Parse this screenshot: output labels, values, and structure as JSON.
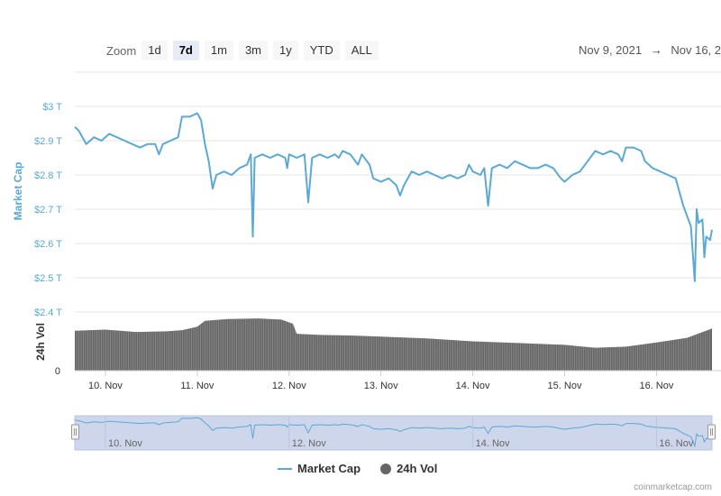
{
  "toolbar": {
    "zoom_label": "Zoom",
    "zoom_buttons": [
      "1d",
      "7d",
      "1m",
      "3m",
      "1y",
      "YTD",
      "ALL"
    ],
    "active_zoom": "7d",
    "range_from": "Nov 9, 2021",
    "range_arrow": "→",
    "range_to": "Nov 16, 2"
  },
  "colors": {
    "market_cap": "#5ba9d5",
    "volume": "#666666",
    "navigator_fill": "#cdd6ea",
    "grid": "#e6e6e6"
  },
  "chart_data": {
    "type": "line",
    "title": "",
    "x_type": "datetime",
    "x_categories": [
      "10. Nov",
      "11. Nov",
      "12. Nov",
      "13. Nov",
      "14. Nov",
      "15. Nov",
      "16. Nov"
    ],
    "x_range": [
      "2021-11-09T16:00",
      "2021-11-16T14:30"
    ],
    "market_cap": {
      "name": "Market Cap",
      "ylabel": "Market Cap",
      "y_ticks": [
        "$3 T",
        "$2.9 T",
        "$2.8 T",
        "$2.7 T",
        "$2.6 T",
        "$2.5 T",
        "$2.4 T"
      ],
      "ylim": [
        2.4,
        3.0
      ],
      "unit": "trillion USD",
      "points": [
        [
          "2021-11-09T16:00",
          2.94
        ],
        [
          "2021-11-09T17:00",
          2.93
        ],
        [
          "2021-11-09T19:00",
          2.89
        ],
        [
          "2021-11-09T21:00",
          2.91
        ],
        [
          "2021-11-09T23:00",
          2.9
        ],
        [
          "2021-11-10T01:00",
          2.92
        ],
        [
          "2021-11-10T03:00",
          2.91
        ],
        [
          "2021-11-10T05:00",
          2.9
        ],
        [
          "2021-11-10T07:00",
          2.89
        ],
        [
          "2021-11-10T09:00",
          2.88
        ],
        [
          "2021-11-10T11:00",
          2.89
        ],
        [
          "2021-11-10T13:00",
          2.89
        ],
        [
          "2021-11-10T14:00",
          2.86
        ],
        [
          "2021-11-10T15:00",
          2.89
        ],
        [
          "2021-11-10T17:00",
          2.9
        ],
        [
          "2021-11-10T19:00",
          2.91
        ],
        [
          "2021-11-10T20:00",
          2.97
        ],
        [
          "2021-11-10T22:00",
          2.97
        ],
        [
          "2021-11-11T00:00",
          2.98
        ],
        [
          "2021-11-11T01:00",
          2.96
        ],
        [
          "2021-11-11T02:00",
          2.89
        ],
        [
          "2021-11-11T03:00",
          2.84
        ],
        [
          "2021-11-11T04:00",
          2.76
        ],
        [
          "2021-11-11T05:00",
          2.8
        ],
        [
          "2021-11-11T07:00",
          2.81
        ],
        [
          "2021-11-11T09:00",
          2.8
        ],
        [
          "2021-11-11T11:00",
          2.82
        ],
        [
          "2021-11-11T13:00",
          2.83
        ],
        [
          "2021-11-11T14:00",
          2.86
        ],
        [
          "2021-11-11T14:30",
          2.62
        ],
        [
          "2021-11-11T15:00",
          2.85
        ],
        [
          "2021-11-11T17:00",
          2.86
        ],
        [
          "2021-11-11T19:00",
          2.85
        ],
        [
          "2021-11-11T21:00",
          2.86
        ],
        [
          "2021-11-11T23:00",
          2.85
        ],
        [
          "2021-11-11T23:30",
          2.82
        ],
        [
          "2021-11-12T00:00",
          2.86
        ],
        [
          "2021-11-12T02:00",
          2.85
        ],
        [
          "2021-11-12T04:00",
          2.86
        ],
        [
          "2021-11-12T05:00",
          2.72
        ],
        [
          "2021-11-12T06:00",
          2.85
        ],
        [
          "2021-11-12T08:00",
          2.86
        ],
        [
          "2021-11-12T10:00",
          2.85
        ],
        [
          "2021-11-12T12:00",
          2.86
        ],
        [
          "2021-11-12T13:00",
          2.85
        ],
        [
          "2021-11-12T14:00",
          2.87
        ],
        [
          "2021-11-12T16:00",
          2.86
        ],
        [
          "2021-11-12T18:00",
          2.83
        ],
        [
          "2021-11-12T19:00",
          2.86
        ],
        [
          "2021-11-12T21:00",
          2.83
        ],
        [
          "2021-11-12T22:00",
          2.79
        ],
        [
          "2021-11-13T00:00",
          2.78
        ],
        [
          "2021-11-13T02:00",
          2.79
        ],
        [
          "2021-11-13T04:00",
          2.77
        ],
        [
          "2021-11-13T05:00",
          2.74
        ],
        [
          "2021-11-13T06:00",
          2.77
        ],
        [
          "2021-11-13T08:00",
          2.81
        ],
        [
          "2021-11-13T10:00",
          2.8
        ],
        [
          "2021-11-13T12:00",
          2.81
        ],
        [
          "2021-11-13T14:00",
          2.8
        ],
        [
          "2021-11-13T16:00",
          2.79
        ],
        [
          "2021-11-13T18:00",
          2.8
        ],
        [
          "2021-11-13T20:00",
          2.79
        ],
        [
          "2021-11-13T22:00",
          2.8
        ],
        [
          "2021-11-13T23:00",
          2.83
        ],
        [
          "2021-11-14T00:00",
          2.81
        ],
        [
          "2021-11-14T02:00",
          2.8
        ],
        [
          "2021-11-14T03:00",
          2.82
        ],
        [
          "2021-11-14T04:00",
          2.71
        ],
        [
          "2021-11-14T05:00",
          2.82
        ],
        [
          "2021-11-14T07:00",
          2.83
        ],
        [
          "2021-11-14T09:00",
          2.82
        ],
        [
          "2021-11-14T11:00",
          2.84
        ],
        [
          "2021-11-14T13:00",
          2.83
        ],
        [
          "2021-11-14T15:00",
          2.82
        ],
        [
          "2021-11-14T17:00",
          2.82
        ],
        [
          "2021-11-14T19:00",
          2.83
        ],
        [
          "2021-11-14T21:00",
          2.82
        ],
        [
          "2021-11-14T23:00",
          2.79
        ],
        [
          "2021-11-15T00:00",
          2.78
        ],
        [
          "2021-11-15T02:00",
          2.8
        ],
        [
          "2021-11-15T04:00",
          2.81
        ],
        [
          "2021-11-15T06:00",
          2.84
        ],
        [
          "2021-11-15T08:00",
          2.87
        ],
        [
          "2021-11-15T10:00",
          2.86
        ],
        [
          "2021-11-15T12:00",
          2.87
        ],
        [
          "2021-11-15T14:00",
          2.86
        ],
        [
          "2021-11-15T15:00",
          2.84
        ],
        [
          "2021-11-15T16:00",
          2.88
        ],
        [
          "2021-11-15T18:00",
          2.88
        ],
        [
          "2021-11-15T20:00",
          2.87
        ],
        [
          "2021-11-15T21:00",
          2.84
        ],
        [
          "2021-11-15T23:00",
          2.82
        ],
        [
          "2021-11-16T01:00",
          2.81
        ],
        [
          "2021-11-16T03:00",
          2.8
        ],
        [
          "2021-11-16T05:00",
          2.79
        ],
        [
          "2021-11-16T06:00",
          2.75
        ],
        [
          "2021-11-16T07:00",
          2.71
        ],
        [
          "2021-11-16T08:00",
          2.68
        ],
        [
          "2021-11-16T09:00",
          2.65
        ],
        [
          "2021-11-16T10:00",
          2.49
        ],
        [
          "2021-11-16T10:30",
          2.7
        ],
        [
          "2021-11-16T11:00",
          2.66
        ],
        [
          "2021-11-16T12:00",
          2.67
        ],
        [
          "2021-11-16T12:30",
          2.56
        ],
        [
          "2021-11-16T13:00",
          2.62
        ],
        [
          "2021-11-16T14:00",
          2.61
        ],
        [
          "2021-11-16T14:30",
          2.64
        ]
      ]
    },
    "volume": {
      "name": "24h Vol",
      "ylabel": "24h Vol",
      "y_ticks": [
        "0"
      ],
      "relative_max": 1.0,
      "points": [
        [
          "2021-11-09T16:00",
          0.68
        ],
        [
          "2021-11-10T00:00",
          0.7
        ],
        [
          "2021-11-10T08:00",
          0.66
        ],
        [
          "2021-11-10T16:00",
          0.67
        ],
        [
          "2021-11-10T20:00",
          0.69
        ],
        [
          "2021-11-11T00:00",
          0.75
        ],
        [
          "2021-11-11T02:00",
          0.85
        ],
        [
          "2021-11-11T08:00",
          0.88
        ],
        [
          "2021-11-11T16:00",
          0.89
        ],
        [
          "2021-11-11T22:00",
          0.87
        ],
        [
          "2021-11-12T01:00",
          0.8
        ],
        [
          "2021-11-12T02:00",
          0.63
        ],
        [
          "2021-11-12T08:00",
          0.61
        ],
        [
          "2021-11-12T16:00",
          0.6
        ],
        [
          "2021-11-13T00:00",
          0.58
        ],
        [
          "2021-11-13T12:00",
          0.55
        ],
        [
          "2021-11-14T00:00",
          0.5
        ],
        [
          "2021-11-14T12:00",
          0.47
        ],
        [
          "2021-11-15T00:00",
          0.44
        ],
        [
          "2021-11-15T08:00",
          0.39
        ],
        [
          "2021-11-15T16:00",
          0.41
        ],
        [
          "2021-11-16T00:00",
          0.48
        ],
        [
          "2021-11-16T08:00",
          0.56
        ],
        [
          "2021-11-16T14:30",
          0.72
        ]
      ]
    },
    "navigator": {
      "x_labels": [
        "10. Nov",
        "12. Nov",
        "14. Nov",
        "16. Nov"
      ]
    },
    "legend": [
      "Market Cap",
      "24h Vol"
    ],
    "grid": true,
    "legend_position": "bottom-center"
  },
  "legend": {
    "market_cap_label": "Market Cap",
    "volume_label": "24h Vol"
  },
  "credit": "coinmarketcap.com"
}
